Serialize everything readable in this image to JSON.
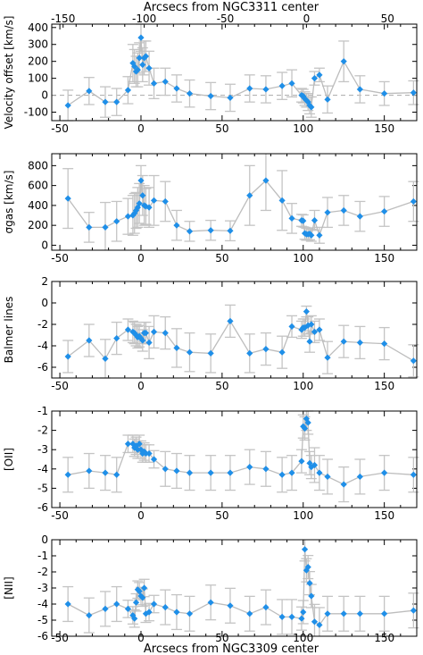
{
  "top_axis_label": "Arcsecs from NGC3311 center",
  "bottom_axis_label": "Arcsecs from NGC3309 center",
  "top_ticks": [
    -150,
    -100,
    -50,
    0,
    50
  ],
  "bottom_ticks": [
    -50,
    0,
    50,
    100,
    150
  ],
  "chart_data": [
    {
      "type": "line",
      "ylabel": "Velocity offset [km/s]",
      "xlim": [
        -55,
        170
      ],
      "ylim": [
        -150,
        420
      ],
      "yticks": [
        400,
        300,
        200,
        100,
        0,
        -100
      ],
      "zero_line": true,
      "series": [
        {
          "x": [
            -45,
            -32,
            -22,
            -15,
            -8,
            -5,
            -4,
            -3,
            -2,
            -1,
            0,
            1,
            2,
            3,
            5,
            8,
            15,
            22,
            30,
            43,
            55,
            67,
            77,
            87,
            93,
            99,
            100,
            101,
            102,
            103,
            104,
            105,
            107,
            110,
            115,
            125,
            135,
            150,
            168
          ],
          "y": [
            -60,
            25,
            -40,
            -40,
            30,
            190,
            170,
            140,
            150,
            220,
            340,
            180,
            220,
            230,
            160,
            70,
            80,
            40,
            10,
            -5,
            -15,
            40,
            35,
            55,
            70,
            0,
            -5,
            -20,
            -30,
            -40,
            -60,
            -70,
            100,
            120,
            -25,
            200,
            35,
            10,
            15
          ],
          "err": [
            90,
            80,
            90,
            80,
            80,
            110,
            100,
            90,
            100,
            90,
            80,
            100,
            100,
            90,
            100,
            90,
            80,
            80,
            80,
            80,
            80,
            80,
            80,
            80,
            80,
            40,
            40,
            40,
            40,
            50,
            50,
            60,
            40,
            40,
            80,
            120,
            80,
            70,
            70
          ]
        }
      ]
    },
    {
      "type": "line",
      "ylabel": "σgas [km/s]",
      "xlim": [
        -55,
        170
      ],
      "ylim": [
        -50,
        920
      ],
      "yticks": [
        800,
        600,
        400,
        200,
        0
      ],
      "series": [
        {
          "x": [
            -45,
            -32,
            -22,
            -15,
            -8,
            -5,
            -4,
            -3,
            -2,
            -1,
            0,
            1,
            2,
            3,
            5,
            8,
            15,
            22,
            30,
            43,
            55,
            67,
            77,
            87,
            93,
            99,
            100,
            101,
            102,
            103,
            104,
            105,
            107,
            110,
            115,
            125,
            135,
            150,
            168
          ],
          "y": [
            470,
            180,
            180,
            240,
            290,
            300,
            320,
            350,
            380,
            420,
            650,
            500,
            400,
            390,
            380,
            450,
            440,
            200,
            140,
            150,
            145,
            500,
            650,
            450,
            270,
            250,
            245,
            120,
            110,
            110,
            115,
            100,
            250,
            100,
            330,
            350,
            290,
            340,
            440
          ],
          "err": [
            300,
            150,
            250,
            200,
            180,
            200,
            200,
            180,
            200,
            200,
            150,
            200,
            200,
            180,
            200,
            250,
            200,
            150,
            100,
            100,
            100,
            300,
            300,
            300,
            150,
            60,
            60,
            60,
            60,
            60,
            60,
            60,
            100,
            80,
            150,
            150,
            150,
            150,
            200
          ]
        }
      ]
    },
    {
      "type": "line",
      "ylabel": "Balmer lines",
      "xlim": [
        -55,
        170
      ],
      "ylim": [
        -7,
        2
      ],
      "yticks": [
        2,
        0,
        -2,
        -4,
        -6
      ],
      "series": [
        {
          "x": [
            -45,
            -32,
            -22,
            -15,
            -8,
            -5,
            -4,
            -3,
            -2,
            -1,
            0,
            1,
            2,
            3,
            5,
            8,
            15,
            22,
            30,
            43,
            55,
            67,
            77,
            87,
            93,
            99,
            100,
            101,
            102,
            103,
            104,
            105,
            107,
            110,
            115,
            125,
            135,
            150,
            168
          ],
          "y": [
            -5,
            -3.5,
            -5.2,
            -3.3,
            -2.5,
            -2.7,
            -2.8,
            -3.0,
            -3.2,
            -3.1,
            -3.3,
            -3.5,
            -2.8,
            -2.8,
            -3.7,
            -2.7,
            -2.8,
            -4.2,
            -4.6,
            -4.7,
            -1.7,
            -4.7,
            -4.3,
            -4.6,
            -2.2,
            -2.5,
            -2.3,
            -2.3,
            -0.8,
            -2.1,
            -3.6,
            -2.0,
            -2.7,
            -2.5,
            -5.1,
            -3.6,
            -3.7,
            -3.8,
            -5.4
          ],
          "err": [
            1.5,
            1.5,
            1.8,
            1.5,
            1,
            1,
            1,
            1,
            1,
            1,
            0.5,
            1,
            1,
            1,
            1.5,
            1.5,
            1.5,
            1.8,
            1.8,
            1.8,
            1.5,
            1.8,
            1.5,
            1.5,
            1,
            0.8,
            0.8,
            0.8,
            0.5,
            0.8,
            1,
            0.8,
            1,
            1,
            1.5,
            1.5,
            1.5,
            1.5,
            1.5
          ]
        }
      ]
    },
    {
      "type": "line",
      "ylabel": "[OII]",
      "xlim": [
        -55,
        170
      ],
      "ylim": [
        -6,
        -1
      ],
      "yticks": [
        -1,
        -2,
        -3,
        -4,
        -5,
        -6
      ],
      "series": [
        {
          "x": [
            -45,
            -32,
            -22,
            -15,
            -8,
            -5,
            -4,
            -3,
            -2,
            -1,
            0,
            1,
            2,
            3,
            5,
            8,
            15,
            22,
            30,
            43,
            55,
            67,
            77,
            87,
            93,
            99,
            100,
            101,
            102,
            103,
            104,
            105,
            107,
            110,
            115,
            125,
            135,
            150,
            168
          ],
          "y": [
            -4.3,
            -4.1,
            -4.2,
            -4.3,
            -2.7,
            -2.7,
            -2.9,
            -2.8,
            -3.0,
            -2.7,
            -3.0,
            -3.2,
            -3.1,
            -3.2,
            -3.2,
            -3.5,
            -4.0,
            -4.1,
            -4.2,
            -4.2,
            -4.2,
            -3.9,
            -4.0,
            -4.3,
            -4.2,
            -3.6,
            -1.8,
            -1.9,
            -1.4,
            -1.6,
            -3.7,
            -3.9,
            -3.8,
            -4.2,
            -4.4,
            -4.8,
            -4.4,
            -4.2,
            -4.3
          ]
        }
      ]
    },
    {
      "type": "line",
      "ylabel": "[NII]",
      "xlim": [
        -55,
        170
      ],
      "ylim": [
        -6,
        0
      ],
      "yticks": [
        0,
        -1,
        -2,
        -3,
        -4,
        -5,
        -6
      ],
      "series": [
        {
          "x": [
            -45,
            -32,
            -22,
            -15,
            -8,
            -5,
            -4,
            -3,
            -2,
            -1,
            0,
            1,
            2,
            3,
            5,
            8,
            15,
            22,
            30,
            43,
            55,
            67,
            77,
            87,
            93,
            99,
            100,
            101,
            102,
            103,
            104,
            105,
            107,
            110,
            115,
            125,
            135,
            150,
            168
          ],
          "y": [
            -4.0,
            -4.7,
            -4.3,
            -4.0,
            -4.3,
            -4.7,
            -4.9,
            -3.9,
            -3.1,
            -3.2,
            -3.5,
            -3.6,
            -3.0,
            -4.6,
            -4.5,
            -4.0,
            -4.2,
            -4.5,
            -4.6,
            -3.9,
            -4.1,
            -4.6,
            -4.2,
            -4.8,
            -4.8,
            -4.9,
            -4.5,
            -0.6,
            -1.9,
            -1.7,
            -2.7,
            -3.5,
            -5.1,
            -5.3,
            -4.6,
            -4.6,
            -4.6,
            -4.6,
            -4.4
          ]
        }
      ]
    }
  ]
}
